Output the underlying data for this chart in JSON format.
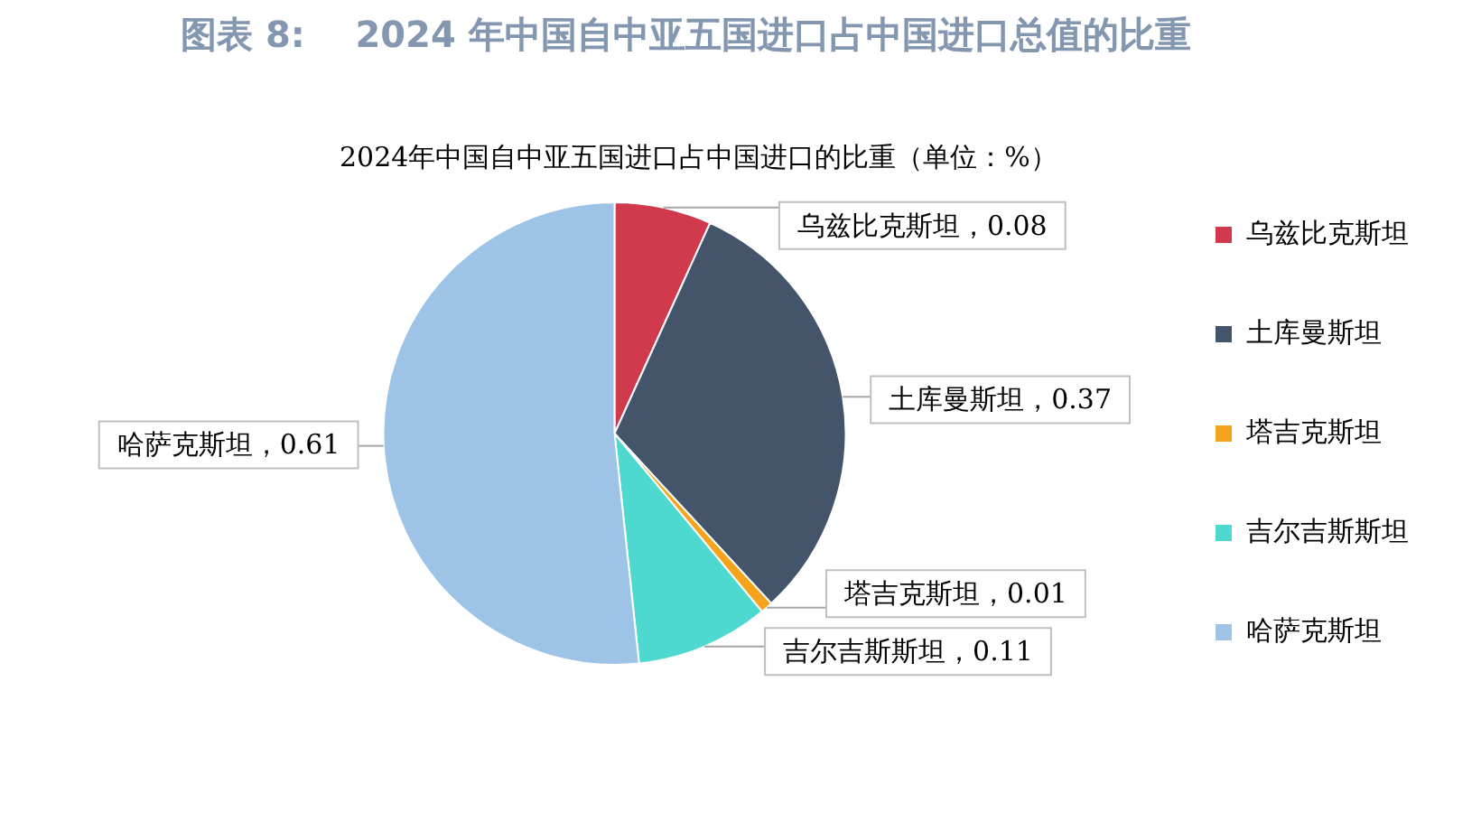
{
  "chart_data": {
    "type": "pie",
    "title": "图表 8:    2024 年中国自中亚五国进口占中国进口总值的比重",
    "subtitle": "2024年中国自中亚五国进口占中国进口的比重（单位：%）",
    "categories": [
      "乌兹比克斯坦",
      "土库曼斯坦",
      "塔吉克斯坦",
      "吉尔吉斯斯坦",
      "哈萨克斯坦"
    ],
    "values": [
      0.08,
      0.37,
      0.01,
      0.11,
      0.61
    ],
    "value_labels": [
      "乌兹比克斯坦，0.08",
      "土库曼斯坦，0.37",
      "塔吉克斯坦，0.01",
      "吉尔吉斯斯坦，0.11",
      "哈萨克斯坦，0.61"
    ],
    "colors": [
      "#d1394c",
      "#44546a",
      "#f5a31a",
      "#4dd9cf",
      "#9dc3e6"
    ],
    "legend": "right"
  }
}
